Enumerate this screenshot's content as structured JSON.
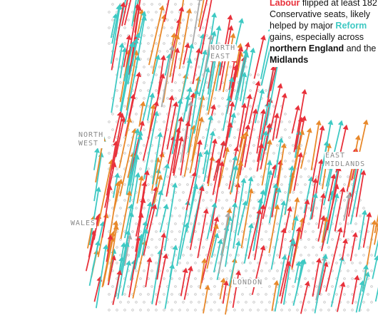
{
  "caption_fragment": "· ····· · ·· ·· ·· · ···· ··",
  "annotation": {
    "part1": "Labour",
    "part2": " flipped at least 182 Conservative seats, likely helped by major ",
    "part3": "Reform",
    "part4": " gains, especially across ",
    "part5": "northern England",
    "part6": " and the ",
    "part7": "Midlands"
  },
  "regions": {
    "north_east": "NORTH\nEAST",
    "north_west": "NORTH\nWEST",
    "east_midlands": "EAST\nMIDLANDS",
    "wales": "WALES",
    "london": "LONDON"
  },
  "legend_colors": {
    "labour": "#e8303a",
    "reform": "#3ec9c3",
    "conservative": "#e8892b",
    "other": "#aaaaaa",
    "dots": "#b9b9b9"
  },
  "arrow_seed": 7
}
